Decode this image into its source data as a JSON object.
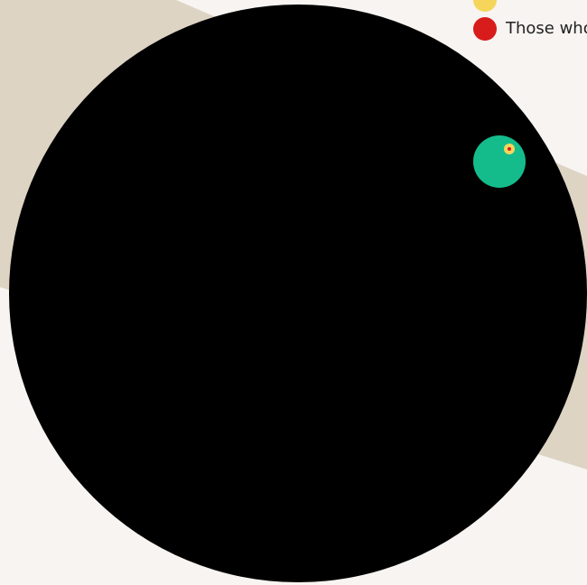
{
  "legend": {
    "items": [
      {
        "label": "",
        "color": "#f5d65b",
        "icon": "yellow-dot"
      },
      {
        "label": "Those who",
        "color": "#d81b1b",
        "icon": "red-dot"
      }
    ]
  },
  "diagram": {
    "band_color": "#ddd4c4",
    "big_circle_color": "#000000",
    "green_circle_color": "#14bc8c",
    "yellow_circle_color": "#f5d65b",
    "red_circle_color": "#d81b1b"
  }
}
